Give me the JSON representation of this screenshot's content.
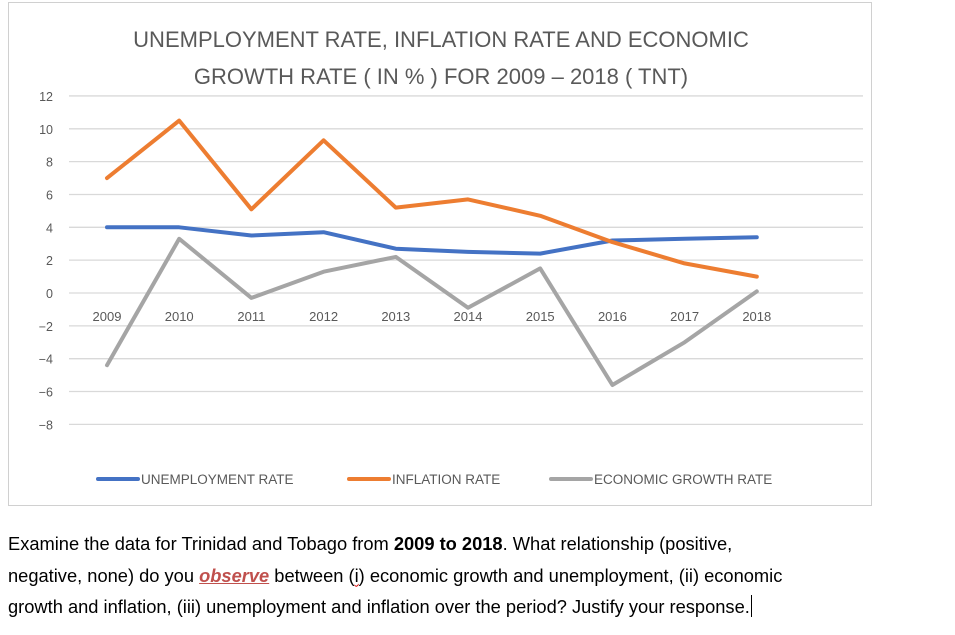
{
  "chart_data": {
    "type": "line",
    "title_lines": [
      "UNEMPLOYMENT RATE, INFLATION RATE AND ECONOMIC",
      "GROWTH RATE ( IN % ) FOR 2009 – 2018 ( TNT)"
    ],
    "categories": [
      "2009",
      "2010",
      "2011",
      "2012",
      "2013",
      "2014",
      "2015",
      "2016",
      "2017",
      "2018"
    ],
    "yticks": [
      12,
      10,
      8,
      6,
      4,
      2,
      0,
      -2,
      -4,
      -6,
      -8
    ],
    "ylim": [
      -8,
      12
    ],
    "grid": true,
    "legend_position": "bottom",
    "series": [
      {
        "name": "UNEMPLOYMENT RATE",
        "color": "#4472c4",
        "values": [
          4.0,
          4.0,
          3.5,
          3.7,
          2.7,
          2.5,
          2.4,
          3.2,
          3.3,
          3.4
        ]
      },
      {
        "name": "INFLATION RATE",
        "color": "#ed7d31",
        "values": [
          7.0,
          10.5,
          5.1,
          9.3,
          5.2,
          5.7,
          4.7,
          3.1,
          1.8,
          1.0
        ]
      },
      {
        "name": "ECONOMIC GROWTH RATE",
        "color": "#a5a5a5",
        "values": [
          -4.4,
          3.3,
          -0.3,
          1.3,
          2.2,
          -0.9,
          1.5,
          -5.6,
          -3.0,
          0.1
        ]
      }
    ]
  },
  "question": {
    "l1a": "Examine the data for Trinidad and Tobago from ",
    "l1b": "2009 to 2018",
    "l1c": ". What relationship (positive,",
    "l2a": "negative, none) do you ",
    "l2b": "observe",
    "l2c": " between (",
    "l2d": "i",
    "l2e": ") economic growth and unemployment, (ii) economic",
    "l3": "growth and inflation, (iii) unemployment and inflation over the period? Justify your response."
  }
}
